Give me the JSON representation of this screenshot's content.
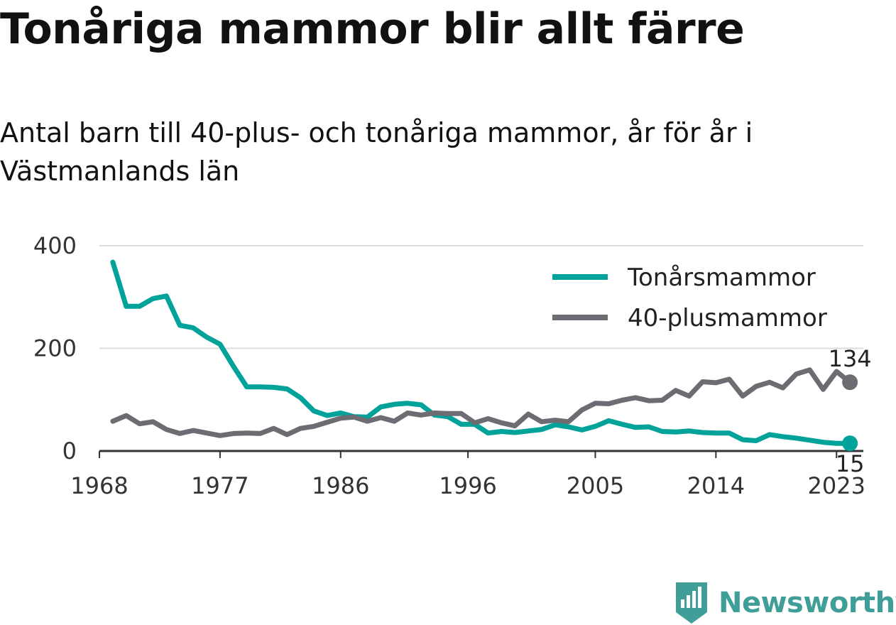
{
  "header": {
    "title": "Tonåriga mammor blir allt färre",
    "subtitle": "Antal barn till 40-plus- och tonåriga mammor, år för år i Västmanlands län"
  },
  "brand": {
    "name": "Newsworthy",
    "color": "#3f9e98",
    "icon": "bar-chart-logo-icon"
  },
  "chart_data": {
    "type": "line",
    "title": "Tonåriga mammor blir allt färre",
    "x": [
      1969,
      1970,
      1971,
      1972,
      1973,
      1974,
      1975,
      1976,
      1977,
      1978,
      1979,
      1980,
      1981,
      1982,
      1983,
      1984,
      1985,
      1986,
      1987,
      1988,
      1989,
      1990,
      1991,
      1992,
      1993,
      1994,
      1995,
      1996,
      1997,
      1998,
      1999,
      2000,
      2001,
      2002,
      2003,
      2004,
      2005,
      2006,
      2007,
      2008,
      2009,
      2010,
      2011,
      2012,
      2013,
      2014,
      2015,
      2016,
      2017,
      2018,
      2019,
      2020,
      2021,
      2022,
      2023,
      2024
    ],
    "x_ticks": [
      "1968",
      "1977",
      "1986",
      "1996",
      "2005",
      "2014",
      "2023"
    ],
    "x_tick_years": [
      1968,
      1977,
      1986,
      1995.5,
      2005,
      2014,
      2023
    ],
    "xlim": [
      1968,
      2025
    ],
    "y_ticks": [
      "0",
      "200",
      "400"
    ],
    "y_tick_values": [
      0,
      200,
      400
    ],
    "ylim": [
      0,
      400
    ],
    "grid": true,
    "legend_position": "top-right",
    "series": [
      {
        "name": "Tonårsmammor",
        "color": "#00a29a",
        "values": [
          368,
          282,
          282,
          297,
          302,
          245,
          240,
          222,
          208,
          165,
          125,
          125,
          124,
          121,
          104,
          78,
          69,
          74,
          67,
          66,
          86,
          91,
          93,
          90,
          70,
          67,
          52,
          52,
          35,
          38,
          36,
          39,
          42,
          51,
          47,
          41,
          48,
          59,
          52,
          46,
          47,
          38,
          37,
          39,
          36,
          35,
          35,
          22,
          20,
          32,
          28,
          25,
          21,
          17,
          15,
          15
        ],
        "end_label": "15"
      },
      {
        "name": "40-plusmammor",
        "color": "#6d6c72",
        "values": [
          58,
          69,
          53,
          57,
          42,
          34,
          40,
          35,
          30,
          34,
          35,
          34,
          44,
          32,
          44,
          48,
          56,
          64,
          66,
          58,
          65,
          58,
          74,
          70,
          74,
          73,
          73,
          55,
          63,
          55,
          49,
          72,
          57,
          60,
          57,
          80,
          93,
          92,
          99,
          104,
          98,
          99,
          118,
          107,
          135,
          133,
          140,
          107,
          126,
          134,
          123,
          150,
          158,
          120,
          155,
          134
        ],
        "end_label": "134"
      }
    ]
  }
}
